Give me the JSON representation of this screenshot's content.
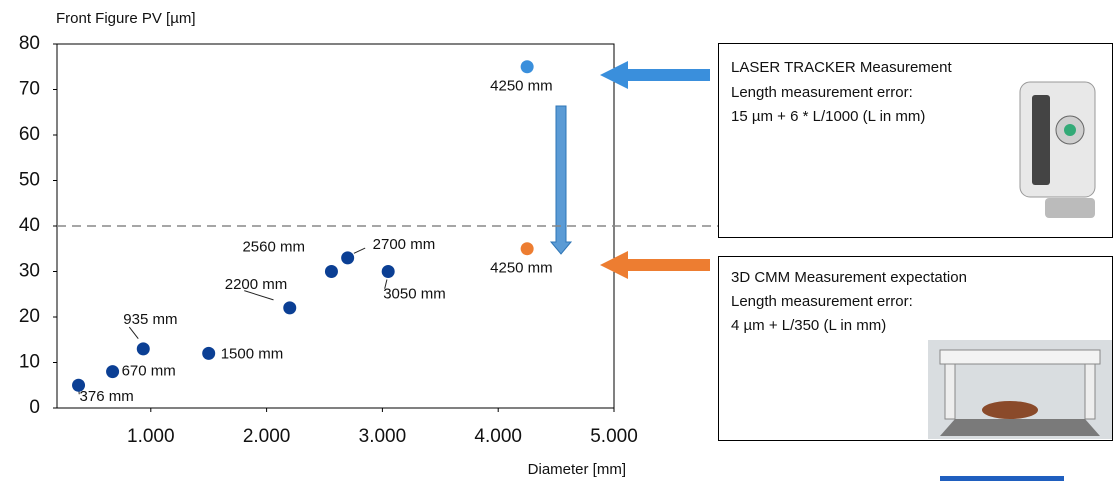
{
  "chart_data": {
    "type": "scatter",
    "y_axis_title": "Front Figure PV [µm]",
    "x_axis_title": "Diameter [mm]",
    "xlim": [
      190,
      5000
    ],
    "ylim": [
      0,
      80
    ],
    "xticks": [
      {
        "value": 1000,
        "label": "1.000"
      },
      {
        "value": 2000,
        "label": "2.000"
      },
      {
        "value": 3000,
        "label": "3.000"
      },
      {
        "value": 4000,
        "label": "4.000"
      },
      {
        "value": 5000,
        "label": "5.000"
      }
    ],
    "yticks": [
      0,
      10,
      20,
      30,
      40,
      50,
      60,
      70,
      80
    ],
    "reference_line": 40,
    "series": [
      {
        "color": "#0b3f94",
        "x": [
          376,
          670,
          935,
          1500,
          2200,
          2560,
          2700,
          3050
        ],
        "values": [
          5,
          8,
          13,
          12,
          22,
          30,
          33,
          30
        ],
        "point_labels": [
          "376 mm",
          "670 mm",
          "935 mm",
          "1500 mm",
          "2200 mm",
          "2560 mm",
          "2700 mm",
          "3050 mm"
        ]
      },
      {
        "color": "#3a8fdc",
        "x": [
          4250
        ],
        "values": [
          75
        ],
        "point_labels": [
          "4250 mm"
        ]
      },
      {
        "color": "#ed7d31",
        "x": [
          4250
        ],
        "values": [
          35
        ],
        "point_labels": [
          "4250 mm"
        ]
      }
    ],
    "annotations": [
      {
        "title": "LASER TRACKER Measurement",
        "lines": [
          "Length measurement error:",
          "15 µm + 6 * L/1000 (L in mm)"
        ]
      },
      {
        "title": "3D CMM Measurement expectation",
        "lines": [
          "Length measurement error:",
          "4 µm + L/350 (L in mm)"
        ]
      }
    ]
  }
}
